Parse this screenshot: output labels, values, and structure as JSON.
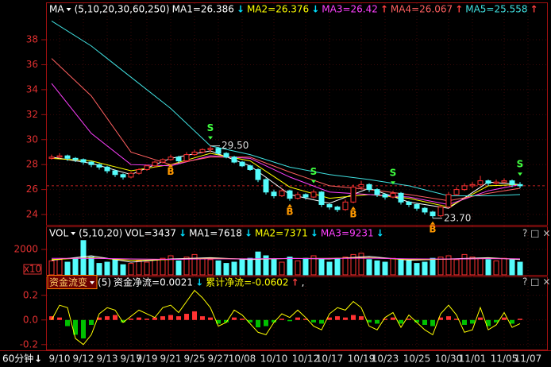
{
  "chart_data": [
    {
      "type": "candlestick",
      "indicator": "MA",
      "params": "(5,10,20,30,60,250)",
      "items": [
        {
          "text": "MA1=26.386",
          "arrow": "↓",
          "color": "#ffffff",
          "arrow_color": "#00e0ff"
        },
        {
          "text": "MA2=26.376",
          "arrow": "↓",
          "color": "#ffff00",
          "arrow_color": "#00e0ff"
        },
        {
          "text": "MA3=26.42",
          "arrow": "↑",
          "color": "#ff40ff",
          "arrow_color": "#ff4040"
        },
        {
          "text": "MA4=26.067",
          "arrow": "↑",
          "color": "#ff6060",
          "arrow_color": "#ff4040"
        },
        {
          "text": "MA5=25.558",
          "arrow": "↑",
          "color": "#40e0e0",
          "arrow_color": "#ff4040"
        }
      ],
      "ylim": [
        23.24,
        39.91
      ],
      "yticks": [
        24,
        26,
        28,
        30,
        32,
        34,
        36,
        38
      ],
      "up_color": "#ff3232",
      "down_color": "#54fcfc",
      "ref_line": 26.3,
      "candles": [
        [
          28.5,
          28.8,
          28.4,
          28.6
        ],
        [
          28.6,
          28.9,
          28.5,
          28.7
        ],
        [
          28.7,
          28.8,
          28.3,
          28.5
        ],
        [
          28.5,
          28.6,
          28.2,
          28.4
        ],
        [
          28.4,
          28.5,
          28.0,
          28.2
        ],
        [
          28.2,
          28.3,
          27.8,
          28.0
        ],
        [
          28.0,
          28.1,
          27.6,
          27.8
        ],
        [
          27.8,
          27.9,
          27.3,
          27.5
        ],
        [
          27.5,
          27.6,
          27.0,
          27.2
        ],
        [
          27.2,
          27.3,
          26.8,
          27.0
        ],
        [
          27.0,
          27.4,
          26.9,
          27.3
        ],
        [
          27.3,
          27.7,
          27.2,
          27.6
        ],
        [
          27.6,
          28.0,
          27.5,
          27.9
        ],
        [
          27.9,
          28.3,
          27.8,
          28.2
        ],
        [
          28.2,
          28.5,
          28.1,
          28.4
        ],
        [
          28.4,
          28.8,
          28.3,
          28.6
        ],
        [
          28.6,
          28.7,
          28.1,
          28.3
        ],
        [
          28.3,
          29.0,
          28.2,
          28.8
        ],
        [
          28.8,
          29.2,
          28.7,
          29.0
        ],
        [
          29.0,
          29.3,
          28.9,
          29.2
        ],
        [
          29.2,
          29.5,
          29.0,
          29.3
        ],
        [
          29.3,
          29.4,
          28.8,
          28.9
        ],
        [
          28.9,
          29.0,
          28.5,
          28.6
        ],
        [
          28.6,
          28.7,
          28.1,
          28.2
        ],
        [
          28.2,
          28.3,
          27.8,
          27.9
        ],
        [
          27.9,
          28.0,
          27.5,
          27.6
        ],
        [
          27.6,
          27.7,
          26.6,
          26.8
        ],
        [
          26.8,
          26.9,
          25.6,
          25.8
        ],
        [
          25.8,
          26.0,
          25.3,
          25.5
        ],
        [
          25.5,
          26.1,
          25.4,
          25.9
        ],
        [
          25.9,
          26.0,
          25.1,
          25.3
        ],
        [
          25.3,
          25.8,
          25.2,
          25.6
        ],
        [
          25.6,
          25.7,
          25.2,
          25.4
        ],
        [
          25.4,
          26.0,
          25.3,
          25.8
        ],
        [
          25.8,
          25.9,
          24.6,
          24.8
        ],
        [
          24.8,
          24.9,
          24.4,
          24.6
        ],
        [
          24.6,
          24.7,
          24.2,
          24.4
        ],
        [
          24.4,
          25.2,
          24.3,
          25.0
        ],
        [
          25.0,
          26.4,
          24.9,
          26.2
        ],
        [
          26.2,
          26.7,
          26.0,
          26.4
        ],
        [
          26.4,
          26.5,
          25.8,
          26.0
        ],
        [
          26.0,
          26.1,
          25.4,
          25.6
        ],
        [
          25.6,
          25.7,
          25.2,
          25.4
        ],
        [
          25.4,
          25.9,
          25.3,
          25.7
        ],
        [
          25.7,
          25.8,
          24.8,
          25.0
        ],
        [
          25.0,
          25.1,
          24.6,
          24.8
        ],
        [
          24.8,
          24.9,
          24.3,
          24.5
        ],
        [
          24.5,
          24.6,
          24.0,
          24.2
        ],
        [
          24.2,
          24.3,
          23.7,
          23.9
        ],
        [
          23.9,
          24.8,
          23.8,
          24.6
        ],
        [
          24.6,
          25.8,
          24.5,
          25.6
        ],
        [
          25.6,
          26.2,
          25.5,
          26.0
        ],
        [
          26.0,
          26.5,
          25.9,
          26.3
        ],
        [
          26.3,
          26.6,
          26.1,
          26.4
        ],
        [
          26.4,
          27.1,
          26.3,
          26.7
        ],
        [
          26.7,
          26.8,
          26.3,
          26.5
        ],
        [
          26.5,
          26.8,
          26.4,
          26.6
        ],
        [
          26.6,
          26.9,
          26.5,
          26.7
        ],
        [
          26.7,
          26.8,
          26.2,
          26.4
        ],
        [
          26.4,
          26.6,
          26.1,
          26.3
        ]
      ],
      "ma_x": [
        0,
        5,
        10,
        15,
        20,
        25,
        30,
        35,
        40,
        45,
        50,
        55,
        59
      ],
      "series": [
        {
          "color": "#ffffff",
          "values": [
            28.6,
            28.1,
            27.2,
            28.5,
            29.1,
            27.9,
            25.6,
            24.9,
            26.1,
            25.0,
            24.5,
            26.6,
            26.4
          ]
        },
        {
          "color": "#ffff00",
          "values": [
            28.5,
            28.3,
            27.5,
            28.0,
            28.9,
            28.3,
            26.2,
            25.3,
            25.6,
            25.3,
            24.6,
            26.3,
            26.4
          ]
        },
        {
          "color": "#ff40ff",
          "values": [
            34.5,
            30.5,
            28.0,
            27.9,
            28.7,
            28.5,
            27.0,
            25.8,
            25.6,
            25.4,
            24.8,
            25.9,
            26.4
          ]
        },
        {
          "color": "#ff6060",
          "values": [
            36.5,
            33.5,
            29.0,
            28.0,
            28.6,
            28.6,
            27.4,
            26.3,
            26.0,
            25.6,
            25.1,
            25.7,
            26.1
          ]
        },
        {
          "color": "#40e0e0",
          "values": [
            39.5,
            37.5,
            35.0,
            32.5,
            29.5,
            28.8,
            27.8,
            27.2,
            26.8,
            26.3,
            25.5,
            25.5,
            25.6
          ]
        }
      ],
      "annotations": [
        {
          "index": 20,
          "value": 29.5,
          "label": "29.50"
        },
        {
          "index": 48,
          "value": 23.7,
          "label": "23.70"
        }
      ],
      "signals": [
        {
          "label": "B",
          "index": 15
        },
        {
          "label": "S",
          "index": 20
        },
        {
          "label": "B",
          "index": 30
        },
        {
          "label": "S",
          "index": 33
        },
        {
          "label": "B",
          "index": 38
        },
        {
          "label": "S",
          "index": 43
        },
        {
          "label": "B",
          "index": 48
        },
        {
          "label": "S",
          "index": 59
        }
      ]
    },
    {
      "type": "volume",
      "indicator": "VOL",
      "params": "(5,10,20)",
      "items": [
        {
          "text": "VOL=3437",
          "arrow": "↓",
          "color": "#ffffff",
          "arrow_color": "#00e0ff"
        },
        {
          "text": "MA1=7618",
          "arrow": "↓",
          "color": "#ffffff",
          "arrow_color": "#00e0ff"
        },
        {
          "text": "MA2=7371",
          "arrow": "↓",
          "color": "#ffff00",
          "arrow_color": "#00e0ff"
        },
        {
          "text": "MA3=9231",
          "arrow": "↓",
          "color": "#ff40ff",
          "arrow_color": "#00e0ff"
        }
      ],
      "ylim": [
        0,
        2750
      ],
      "yticks": [
        2000
      ],
      "unit_label": "x10",
      "values": [
        1100,
        1200,
        1000,
        1300,
        2700,
        1400,
        900,
        1000,
        1200,
        800,
        900,
        1100,
        1000,
        1200,
        1300,
        1500,
        1100,
        1400,
        1600,
        1300,
        1200,
        1100,
        900,
        1000,
        1200,
        1300,
        1800,
        1500,
        1200,
        1000,
        1400,
        1100,
        1300,
        1500,
        1200,
        1000,
        1300,
        1400,
        1600,
        1700,
        1200,
        1100,
        1000,
        1300,
        1200,
        1100,
        900,
        1000,
        1300,
        1400,
        1500,
        1200,
        1600,
        1400,
        1300,
        1200,
        1100,
        1300,
        1200,
        1000
      ],
      "ma_x": [
        0,
        5,
        10,
        15,
        20,
        25,
        30,
        35,
        40,
        45,
        50,
        55,
        59
      ],
      "series": [
        {
          "color": "#ffffff",
          "values": [
            1150,
            1500,
            1000,
            1250,
            1350,
            1200,
            1300,
            1250,
            1450,
            1150,
            1250,
            1350,
            1200
          ]
        },
        {
          "color": "#ffff00",
          "values": [
            1200,
            1350,
            1150,
            1200,
            1300,
            1250,
            1280,
            1300,
            1350,
            1200,
            1230,
            1300,
            1250
          ]
        },
        {
          "color": "#ff40ff",
          "values": [
            1300,
            1300,
            1250,
            1220,
            1260,
            1260,
            1280,
            1290,
            1310,
            1260,
            1240,
            1270,
            1260
          ]
        }
      ]
    },
    {
      "type": "flow",
      "indicator": "资金流变",
      "params": "(5)",
      "items": [
        {
          "text": "资金净流=0.0021",
          "arrow": "↓",
          "color": "#ffffff",
          "arrow_color": "#00e0ff"
        },
        {
          "text": "累计净流=-0.0602",
          "arrow": "↑",
          "color": "#ffff00",
          "arrow_color": "#ff4040"
        },
        {
          "text": ",",
          "color": "#ffffff"
        }
      ],
      "ylim": [
        -0.24,
        0.25
      ],
      "yticks": [
        0.2,
        {
          "value": 0,
          "label": "0.0"
        },
        -0.2
      ],
      "values": [
        0.03,
        0.02,
        -0.05,
        -0.12,
        -0.15,
        -0.04,
        0.02,
        0.03,
        0.04,
        -0.02,
        0.01,
        0.02,
        0.01,
        0.02,
        0.03,
        0.04,
        0.03,
        0.05,
        0.07,
        0.03,
        0.02,
        -0.03,
        -0.02,
        0.02,
        0.01,
        -0.02,
        -0.06,
        -0.05,
        -0.02,
        0.01,
        -0.01,
        0.02,
        0.01,
        -0.02,
        -0.03,
        0.02,
        0.03,
        0.02,
        0.04,
        0.03,
        -0.02,
        -0.03,
        0.01,
        0.02,
        -0.03,
        0.01,
        -0.02,
        -0.04,
        -0.05,
        0.02,
        0.03,
        0.01,
        -0.04,
        -0.03,
        0.02,
        -0.05,
        -0.02,
        0.02,
        -0.03,
        0.01
      ],
      "line": [
        0.0,
        0.12,
        0.1,
        -0.15,
        -0.2,
        -0.12,
        0.05,
        0.1,
        0.08,
        -0.02,
        0.03,
        0.08,
        0.05,
        0.02,
        0.1,
        0.12,
        0.06,
        0.15,
        0.24,
        0.18,
        0.1,
        -0.05,
        -0.02,
        0.08,
        0.04,
        -0.03,
        -0.1,
        -0.12,
        -0.02,
        0.05,
        0.02,
        0.08,
        0.02,
        -0.05,
        -0.08,
        0.05,
        0.1,
        0.08,
        0.15,
        0.1,
        -0.05,
        -0.08,
        0.02,
        0.06,
        -0.06,
        0.04,
        -0.02,
        -0.08,
        -0.12,
        0.05,
        0.12,
        0.04,
        -0.1,
        -0.08,
        0.1,
        -0.08,
        -0.04,
        0.06,
        -0.06,
        -0.03
      ],
      "line_color": "#ffff00",
      "pos_color": "#ff3232",
      "neg_color": "#00c000"
    }
  ],
  "x_axis": {
    "period": "60分钟",
    "arrow": "↓",
    "ticks": [
      {
        "value": 1,
        "label": "9/10"
      },
      {
        "value": 4,
        "label": "9/12"
      },
      {
        "value": 7,
        "label": "9/13"
      },
      {
        "value": 10,
        "label": "9/17"
      },
      {
        "value": 12,
        "label": "9/19"
      },
      {
        "value": 15,
        "label": "9/21"
      },
      {
        "value": 18,
        "label": "9/25"
      },
      {
        "value": 21,
        "label": "9/27"
      },
      {
        "value": 24,
        "label": "10/08"
      },
      {
        "value": 28,
        "label": "10/10"
      },
      {
        "value": 32,
        "label": "10/12"
      },
      {
        "value": 35,
        "label": "10/17"
      },
      {
        "value": 39,
        "label": "10/19"
      },
      {
        "value": 42,
        "label": "10/23"
      },
      {
        "value": 46,
        "label": "10/25"
      },
      {
        "value": 50,
        "label": "10/30"
      },
      {
        "value": 53,
        "label": "11/01"
      },
      {
        "value": 57,
        "label": "11/05"
      },
      {
        "value": 60,
        "label": "11/07"
      }
    ]
  }
}
